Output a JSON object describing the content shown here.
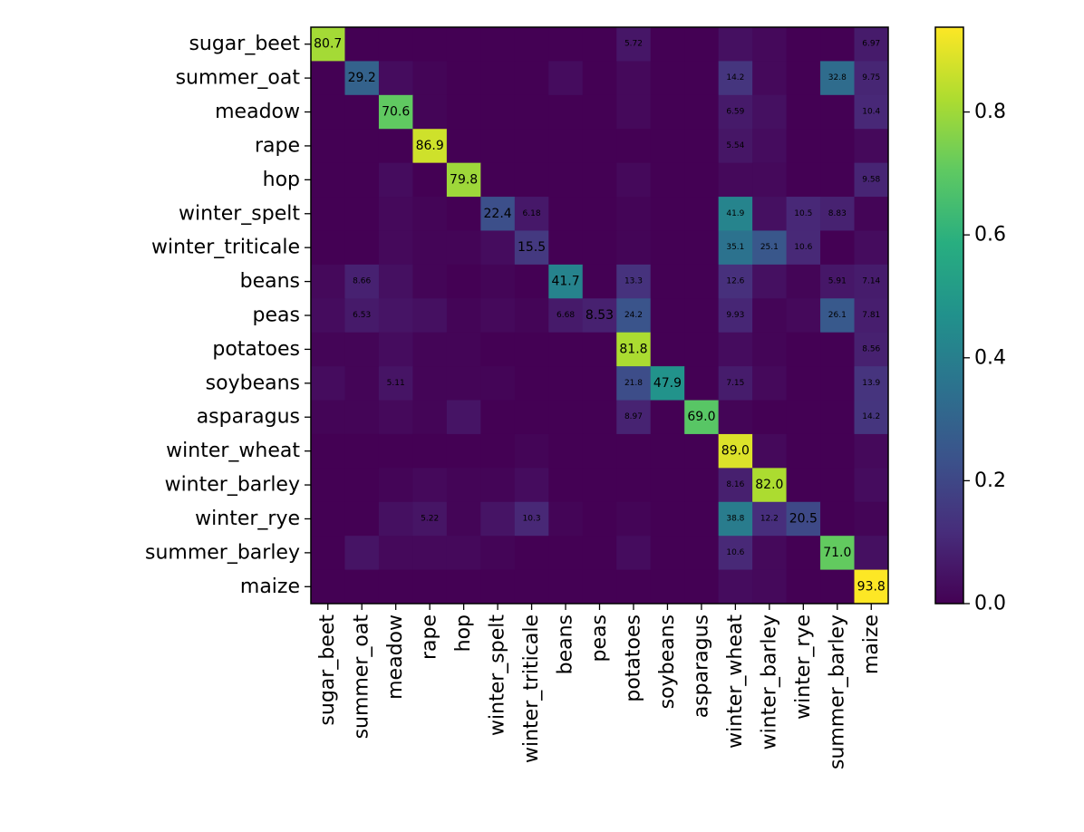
{
  "chart_data": {
    "type": "heatmap",
    "title": "",
    "xlabel": "",
    "ylabel": "",
    "rows": [
      "sugar_beet",
      "summer_oat",
      "meadow",
      "rape",
      "hop",
      "winter_spelt",
      "winter_triticale",
      "beans",
      "peas",
      "potatoes",
      "soybeans",
      "asparagus",
      "winter_wheat",
      "winter_barley",
      "winter_rye",
      "summer_barley",
      "maize"
    ],
    "columns": [
      "sugar_beet",
      "summer_oat",
      "meadow",
      "rape",
      "hop",
      "winter_spelt",
      "winter_triticale",
      "beans",
      "peas",
      "potatoes",
      "soybeans",
      "asparagus",
      "winter_wheat",
      "winter_barley",
      "winter_rye",
      "summer_barley",
      "maize"
    ],
    "values": [
      [
        0.807,
        0,
        0,
        0,
        0,
        0,
        0,
        0,
        0,
        0.0572,
        0,
        0,
        0.04,
        0.02,
        0,
        0,
        0.0697
      ],
      [
        0,
        0.292,
        0.03,
        0.01,
        0,
        0,
        0,
        0.03,
        0,
        0.02,
        0,
        0,
        0.142,
        0.02,
        0,
        0.328,
        0.0975
      ],
      [
        0,
        0,
        0.706,
        0.01,
        0,
        0,
        0,
        0,
        0,
        0.02,
        0,
        0,
        0.0659,
        0.04,
        0,
        0,
        0.104
      ],
      [
        0,
        0,
        0,
        0.869,
        0,
        0,
        0,
        0,
        0,
        0,
        0,
        0,
        0.0554,
        0.03,
        0,
        0,
        0.02
      ],
      [
        0,
        0,
        0.03,
        0,
        0.798,
        0,
        0,
        0,
        0,
        0.02,
        0,
        0,
        0.02,
        0.02,
        0,
        0,
        0.0958
      ],
      [
        0,
        0,
        0.02,
        0.01,
        0,
        0.224,
        0.0618,
        0,
        0,
        0.01,
        0,
        0,
        0.419,
        0.04,
        0.105,
        0.0883,
        0.01
      ],
      [
        0,
        0,
        0.02,
        0.01,
        0.01,
        0.03,
        0.155,
        0,
        0,
        0.01,
        0,
        0,
        0.351,
        0.251,
        0.106,
        0,
        0.03
      ],
      [
        0.02,
        0.0866,
        0.04,
        0.01,
        0,
        0.01,
        0,
        0.417,
        0,
        0.133,
        0,
        0,
        0.126,
        0.04,
        0.01,
        0.0591,
        0.0714
      ],
      [
        0.03,
        0.0653,
        0.05,
        0.04,
        0.01,
        0.02,
        0.01,
        0.0668,
        0.0853,
        0.242,
        0,
        0,
        0.0993,
        0.01,
        0.02,
        0.261,
        0.0781
      ],
      [
        0.01,
        0.01,
        0.03,
        0.01,
        0.01,
        0,
        0,
        0,
        0,
        0.818,
        0,
        0,
        0.03,
        0.01,
        0,
        0,
        0.0856
      ],
      [
        0.03,
        0.01,
        0.0511,
        0.01,
        0.01,
        0.01,
        0,
        0,
        0,
        0.218,
        0.479,
        0,
        0.0715,
        0.02,
        0,
        0,
        0.139
      ],
      [
        0.01,
        0.01,
        0.02,
        0.01,
        0.05,
        0,
        0,
        0,
        0,
        0.0897,
        0,
        0.69,
        0.01,
        0,
        0,
        0,
        0.142
      ],
      [
        0,
        0,
        0,
        0,
        0,
        0,
        0.01,
        0,
        0,
        0,
        0,
        0,
        0.89,
        0.02,
        0,
        0,
        0.02
      ],
      [
        0,
        0,
        0.01,
        0.02,
        0.01,
        0.01,
        0.03,
        0,
        0,
        0,
        0,
        0,
        0.0816,
        0.82,
        0,
        0,
        0.03
      ],
      [
        0,
        0,
        0.04,
        0.0522,
        0.01,
        0.05,
        0.103,
        0.01,
        0,
        0.01,
        0,
        0,
        0.388,
        0.122,
        0.205,
        0,
        0.01
      ],
      [
        0,
        0.05,
        0.02,
        0.02,
        0.02,
        0.01,
        0,
        0,
        0,
        0.03,
        0,
        0,
        0.106,
        0.02,
        0,
        0.71,
        0.04
      ],
      [
        0,
        0,
        0,
        0,
        0,
        0,
        0,
        0,
        0,
        0,
        0,
        0,
        0.03,
        0.02,
        0,
        0,
        0.938
      ]
    ],
    "labels": [
      [
        "80.7",
        "",
        "",
        "",
        "",
        "",
        "",
        "",
        "",
        "5.72",
        "",
        "",
        "",
        "",
        "",
        "",
        "6.97"
      ],
      [
        "",
        "29.2",
        "",
        "",
        "",
        "",
        "",
        "",
        "",
        "",
        "",
        "",
        "14.2",
        "",
        "",
        "32.8",
        "9.75"
      ],
      [
        "",
        "",
        "70.6",
        "",
        "",
        "",
        "",
        "",
        "",
        "",
        "",
        "",
        "6.59",
        "",
        "",
        "",
        "10.4"
      ],
      [
        "",
        "",
        "",
        "86.9",
        "",
        "",
        "",
        "",
        "",
        "",
        "",
        "",
        "5.54",
        "",
        "",
        "",
        ""
      ],
      [
        "",
        "",
        "",
        "",
        "79.8",
        "",
        "",
        "",
        "",
        "",
        "",
        "",
        "",
        "",
        "",
        "",
        "9.58"
      ],
      [
        "",
        "",
        "",
        "",
        "",
        "22.4",
        "6.18",
        "",
        "",
        "",
        "",
        "",
        "41.9",
        "",
        "10.5",
        "8.83",
        ""
      ],
      [
        "",
        "",
        "",
        "",
        "",
        "",
        "15.5",
        "",
        "",
        "",
        "",
        "",
        "35.1",
        "25.1",
        "10.6",
        "",
        ""
      ],
      [
        "",
        "8.66",
        "",
        "",
        "",
        "",
        "",
        "41.7",
        "",
        "13.3",
        "",
        "",
        "12.6",
        "",
        "",
        "5.91",
        "7.14"
      ],
      [
        "",
        "6.53",
        "",
        "",
        "",
        "",
        "",
        "6.68",
        "8.53",
        "24.2",
        "",
        "",
        "9.93",
        "",
        "",
        "26.1",
        "7.81"
      ],
      [
        "",
        "",
        "",
        "",
        "",
        "",
        "",
        "",
        "",
        "81.8",
        "",
        "",
        "",
        "",
        "",
        "",
        "8.56"
      ],
      [
        "",
        "",
        "5.11",
        "",
        "",
        "",
        "",
        "",
        "",
        "21.8",
        "47.9",
        "",
        "7.15",
        "",
        "",
        "",
        "13.9"
      ],
      [
        "",
        "",
        "",
        "",
        "",
        "",
        "",
        "",
        "",
        "8.97",
        "",
        "69.0",
        "",
        "",
        "",
        "",
        "14.2"
      ],
      [
        "",
        "",
        "",
        "",
        "",
        "",
        "",
        "",
        "",
        "",
        "",
        "",
        "89.0",
        "",
        "",
        "",
        ""
      ],
      [
        "",
        "",
        "",
        "",
        "",
        "",
        "",
        "",
        "",
        "",
        "",
        "",
        "8.16",
        "82.0",
        "",
        "",
        ""
      ],
      [
        "",
        "",
        "",
        "5.22",
        "",
        "",
        "10.3",
        "",
        "",
        "",
        "",
        "",
        "38.8",
        "12.2",
        "20.5",
        "",
        ""
      ],
      [
        "",
        "",
        "",
        "",
        "",
        "",
        "",
        "",
        "",
        "",
        "",
        "",
        "10.6",
        "",
        "",
        "71.0",
        ""
      ],
      [
        "",
        "",
        "",
        "",
        "",
        "",
        "",
        "",
        "",
        "",
        "",
        "",
        "",
        "",
        "",
        "",
        "93.8"
      ]
    ],
    "colorbar": {
      "ticks": [
        "0.0",
        "0.2",
        "0.4",
        "0.6",
        "0.8"
      ],
      "tick_values": [
        0,
        0.2,
        0.4,
        0.6,
        0.8
      ],
      "range": [
        0,
        0.938
      ],
      "colormap": "viridis"
    }
  }
}
